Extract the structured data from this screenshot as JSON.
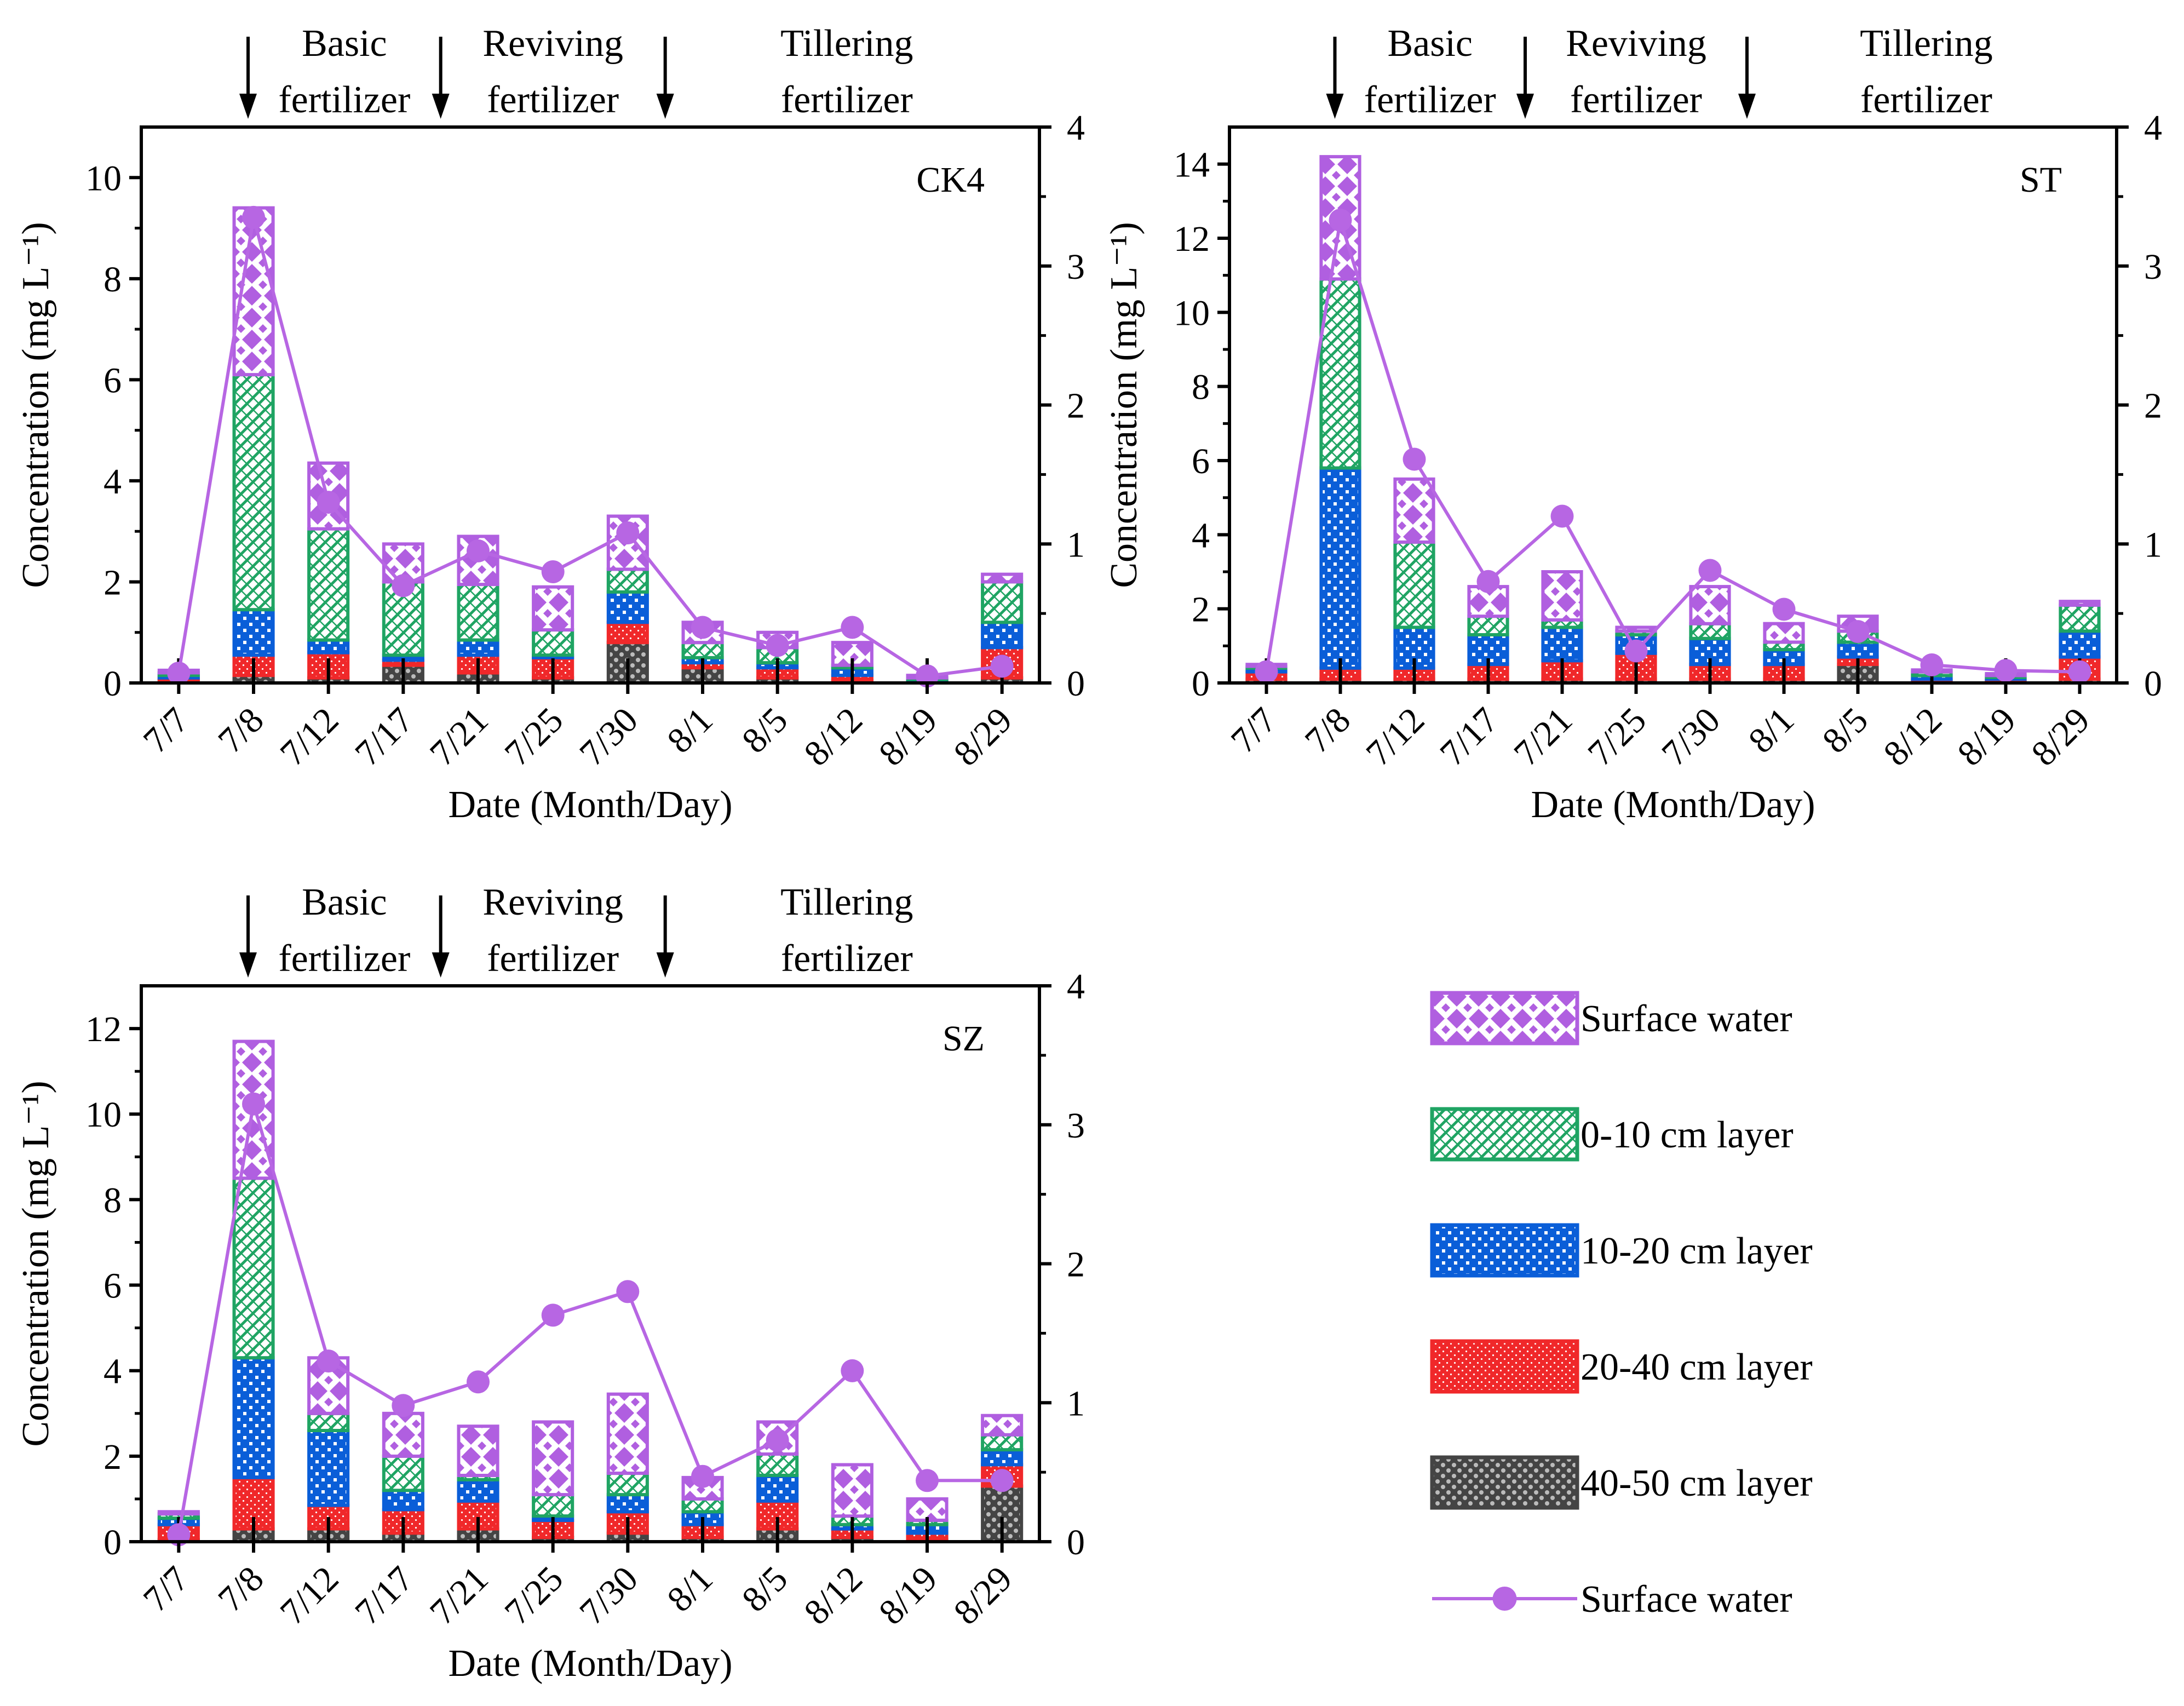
{
  "figure": {
    "xlabel": "Date (Month/Day)",
    "ylabel": "Concentration (mg L⁻¹)",
    "events": [
      {
        "label_line1": "Basic",
        "label_line2": "fertilizer",
        "after_category": "7/7"
      },
      {
        "label_line1": "Reviving",
        "label_line2": "fertilizer",
        "after_category": "7/17"
      },
      {
        "label_line1": "Tillering",
        "label_line2": "fertilizer",
        "after_category": "7/30"
      }
    ]
  },
  "legend": [
    {
      "label": "Surface water",
      "kind": "bar",
      "pattern": "surface"
    },
    {
      "label": "0-10 cm layer",
      "kind": "bar",
      "pattern": "l010"
    },
    {
      "label": "10-20 cm layer",
      "kind": "bar",
      "pattern": "l1020"
    },
    {
      "label": "20-40 cm layer",
      "kind": "bar",
      "pattern": "l2040"
    },
    {
      "label": "40-50 cm layer",
      "kind": "bar",
      "pattern": "l4050"
    },
    {
      "label": "Surface water",
      "kind": "line"
    }
  ],
  "colors": {
    "surface": "#B05FE0",
    "l010": "#1FA463",
    "l1020": "#0A5ED8",
    "l2040": "#F0282A",
    "l4050": "#444444",
    "line": "#B766E3"
  },
  "chart_data": [
    {
      "type": "bar",
      "title": "CK4",
      "xlabel": "Date (Month/Day)",
      "ylabel": "Concentration (mg L⁻¹)",
      "categories": [
        "7/7",
        "7/8",
        "7/12",
        "7/17",
        "7/21",
        "7/25",
        "7/30",
        "8/1",
        "8/5",
        "8/12",
        "8/19",
        "8/29"
      ],
      "ylim": [
        0,
        11
      ],
      "yticks": [
        0,
        2,
        4,
        6,
        8,
        10
      ],
      "y2lim": [
        0,
        4
      ],
      "y2ticks": [
        0,
        1,
        2,
        3,
        4
      ],
      "series": [
        {
          "name": "40-50 cm layer",
          "values": [
            0.05,
            0.15,
            0.1,
            0.35,
            0.2,
            0.1,
            0.8,
            0.3,
            0.1,
            0.05,
            0.02,
            0.1
          ]
        },
        {
          "name": "20-40 cm layer",
          "values": [
            0.05,
            0.4,
            0.5,
            0.1,
            0.35,
            0.4,
            0.4,
            0.1,
            0.2,
            0.1,
            0.03,
            0.6
          ]
        },
        {
          "name": "10-20 cm layer",
          "values": [
            0.05,
            0.9,
            0.25,
            0.1,
            0.3,
            0.05,
            0.6,
            0.1,
            0.1,
            0.15,
            0.02,
            0.5
          ]
        },
        {
          "name": "0-10 cm layer",
          "values": [
            0.05,
            4.65,
            2.2,
            1.45,
            1.1,
            0.5,
            0.45,
            0.3,
            0.3,
            0.05,
            0.03,
            0.8
          ]
        },
        {
          "name": "Surface water",
          "values": [
            0.05,
            3.3,
            1.3,
            0.75,
            0.95,
            0.85,
            1.05,
            0.4,
            0.3,
            0.45,
            0.05,
            0.15
          ]
        }
      ],
      "line": {
        "name": "Surface water",
        "axis": "right",
        "values": [
          0.07,
          3.35,
          1.3,
          0.7,
          0.95,
          0.8,
          1.08,
          0.4,
          0.27,
          0.4,
          0.05,
          0.12
        ]
      }
    },
    {
      "type": "bar",
      "title": "ST",
      "xlabel": "Date (Month/Day)",
      "ylabel": "Concentration (mg L⁻¹)",
      "categories": [
        "7/7",
        "7/8",
        "7/12",
        "7/17",
        "7/21",
        "7/25",
        "7/30",
        "8/1",
        "8/5",
        "8/12",
        "8/19",
        "8/29"
      ],
      "ylim": [
        0,
        15
      ],
      "yticks": [
        0,
        2,
        4,
        6,
        8,
        10,
        12,
        14
      ],
      "y2lim": [
        0,
        4
      ],
      "y2ticks": [
        0,
        1,
        2,
        3,
        4
      ],
      "series": [
        {
          "name": "40-50 cm layer",
          "values": [
            0.1,
            0.1,
            0.1,
            0.1,
            0.1,
            0.1,
            0.1,
            0.1,
            0.5,
            0.05,
            0.05,
            0.1
          ]
        },
        {
          "name": "20-40 cm layer",
          "values": [
            0.2,
            0.3,
            0.3,
            0.4,
            0.5,
            0.7,
            0.4,
            0.4,
            0.2,
            0.05,
            0.05,
            0.6
          ]
        },
        {
          "name": "10-20 cm layer",
          "values": [
            0.1,
            5.4,
            1.1,
            0.8,
            0.9,
            0.5,
            0.7,
            0.4,
            0.4,
            0.1,
            0.05,
            0.7
          ]
        },
        {
          "name": "0-10 cm layer",
          "values": [
            0.05,
            5.1,
            2.3,
            0.5,
            0.2,
            0.1,
            0.4,
            0.2,
            0.3,
            0.1,
            0.05,
            0.7
          ]
        },
        {
          "name": "Surface water",
          "values": [
            0.05,
            3.3,
            1.7,
            0.8,
            1.3,
            0.1,
            1.0,
            0.5,
            0.4,
            0.05,
            0.05,
            0.1
          ]
        }
      ],
      "line": {
        "name": "Surface water",
        "axis": "right",
        "values": [
          0.08,
          3.33,
          1.61,
          0.73,
          1.2,
          0.23,
          0.81,
          0.53,
          0.37,
          0.13,
          0.09,
          0.08
        ]
      }
    },
    {
      "type": "bar",
      "title": "SZ",
      "xlabel": "Date (Month/Day)",
      "ylabel": "Concentration (mg L⁻¹)",
      "categories": [
        "7/7",
        "7/8",
        "7/12",
        "7/17",
        "7/21",
        "7/25",
        "7/30",
        "8/1",
        "8/5",
        "8/12",
        "8/19",
        "8/29"
      ],
      "ylim": [
        0,
        13
      ],
      "yticks": [
        0,
        2,
        4,
        6,
        8,
        10,
        12
      ],
      "y2lim": [
        0,
        4
      ],
      "y2ticks": [
        0,
        1,
        2,
        3,
        4
      ],
      "series": [
        {
          "name": "40-50 cm layer",
          "values": [
            0.05,
            0.3,
            0.3,
            0.2,
            0.3,
            0.1,
            0.2,
            0.1,
            0.3,
            0.1,
            0.05,
            1.3
          ]
        },
        {
          "name": "20-40 cm layer",
          "values": [
            0.35,
            1.2,
            0.55,
            0.55,
            0.65,
            0.4,
            0.5,
            0.3,
            0.65,
            0.2,
            0.15,
            0.5
          ]
        },
        {
          "name": "10-20 cm layer",
          "values": [
            0.15,
            2.8,
            1.75,
            0.45,
            0.5,
            0.1,
            0.4,
            0.3,
            0.6,
            0.1,
            0.2,
            0.35
          ]
        },
        {
          "name": "0-10 cm layer",
          "values": [
            0.1,
            4.2,
            0.4,
            0.8,
            0.1,
            0.5,
            0.5,
            0.3,
            0.5,
            0.2,
            0.1,
            0.35
          ]
        },
        {
          "name": "Surface water",
          "values": [
            0.05,
            3.2,
            1.3,
            1.0,
            1.15,
            1.7,
            1.85,
            0.5,
            0.75,
            1.2,
            0.5,
            0.45
          ]
        }
      ],
      "line": {
        "name": "Surface water",
        "axis": "right",
        "values": [
          0.05,
          3.15,
          1.3,
          0.98,
          1.15,
          1.63,
          1.8,
          0.47,
          0.73,
          1.23,
          0.44,
          0.44
        ]
      }
    }
  ]
}
